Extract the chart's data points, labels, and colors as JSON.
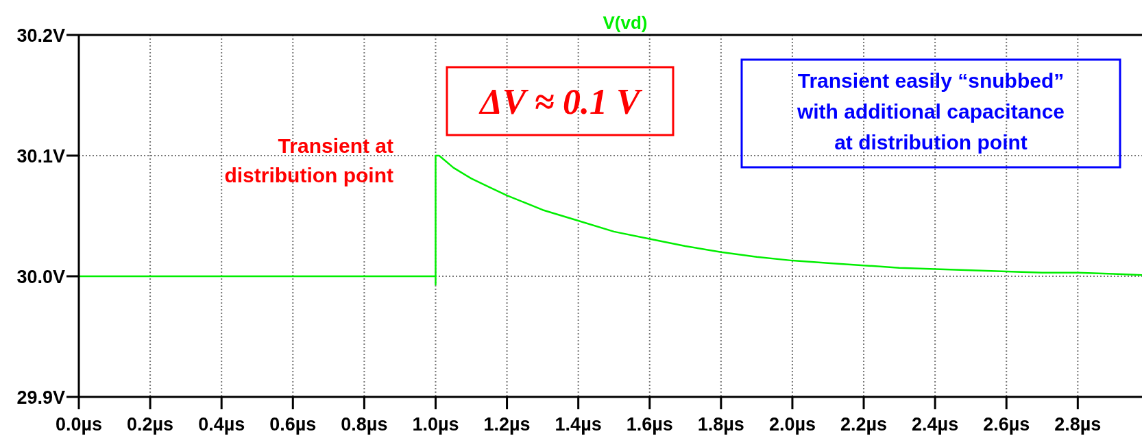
{
  "chart_data": {
    "type": "line",
    "title": "V(vd)",
    "x": [
      0,
      0.5,
      1.0,
      1.0,
      1.0,
      1.01,
      1.05,
      1.1,
      1.15,
      1.2,
      1.3,
      1.4,
      1.5,
      1.6,
      1.7,
      1.8,
      1.9,
      2.0,
      2.1,
      2.2,
      2.3,
      2.4,
      2.5,
      2.6,
      2.7,
      2.8,
      2.9,
      2.98
    ],
    "series": [
      {
        "color": "#00ee00",
        "values": [
          30.0,
          30.0,
          30.0,
          29.993,
          30.1,
          30.1,
          30.09,
          30.081,
          30.074,
          30.067,
          30.055,
          30.046,
          30.037,
          30.031,
          30.025,
          30.02,
          30.016,
          30.013,
          30.011,
          30.009,
          30.007,
          30.006,
          30.005,
          30.004,
          30.003,
          30.003,
          30.002,
          30.001
        ]
      }
    ],
    "xlim": [
      0,
      2.98
    ],
    "xticks": [
      {
        "value": 0,
        "label": "0.0µs"
      },
      {
        "value": 0.2,
        "label": "0.2µs"
      },
      {
        "value": 0.4,
        "label": "0.4µs"
      },
      {
        "value": 0.6,
        "label": "0.6µs"
      },
      {
        "value": 0.8,
        "label": "0.8µs"
      },
      {
        "value": 1.0,
        "label": "1.0µs"
      },
      {
        "value": 1.2,
        "label": "1.2µs"
      },
      {
        "value": 1.4,
        "label": "1.4µs"
      },
      {
        "value": 1.6,
        "label": "1.6µs"
      },
      {
        "value": 1.8,
        "label": "1.8µs"
      },
      {
        "value": 2.0,
        "label": "2.0µs"
      },
      {
        "value": 2.2,
        "label": "2.2µs"
      },
      {
        "value": 2.4,
        "label": "2.4µs"
      },
      {
        "value": 2.6,
        "label": "2.6µs"
      },
      {
        "value": 2.8,
        "label": "2.8µs"
      }
    ],
    "ylim": [
      29.9,
      30.2
    ],
    "yticks": [
      {
        "value": 29.9,
        "label": "29.9V"
      },
      {
        "value": 30.0,
        "label": "30.0V"
      },
      {
        "value": 30.1,
        "label": "30.1V"
      },
      {
        "value": 30.2,
        "label": "30.2V"
      }
    ],
    "grid": true,
    "annotations": [
      "Transient at distribution point",
      "ΔV ≈ 0.1 V",
      "Transient easily “snubbed” with additional capacitance at distribution point"
    ]
  }
}
